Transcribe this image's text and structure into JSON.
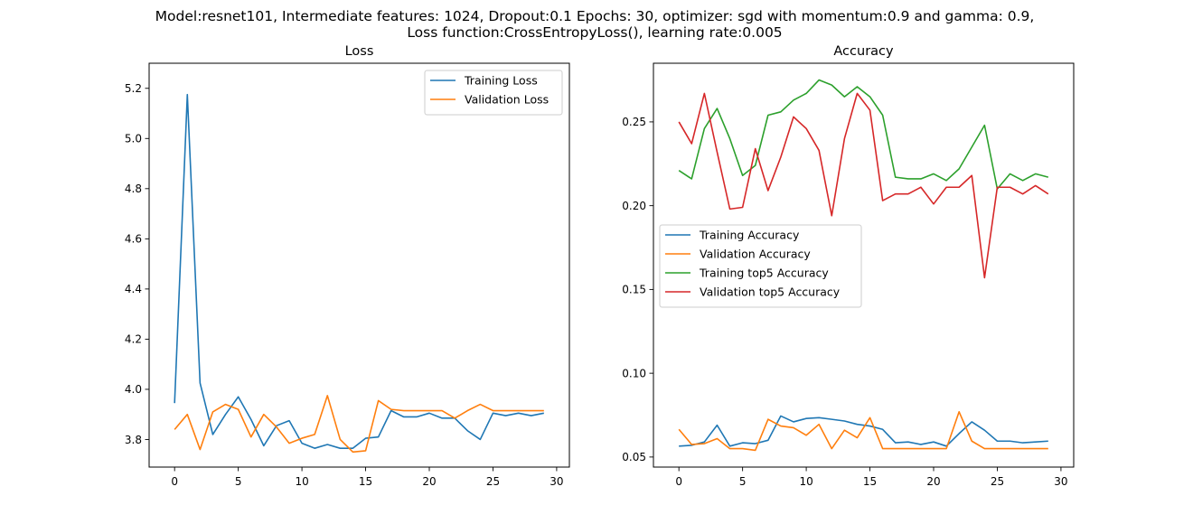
{
  "figure": {
    "suptitle_line1": "Model:resnet101, Intermediate features: 1024, Dropout:0.1 Epochs: 30, optimizer: sgd with momentum:0.9 and gamma: 0.9,",
    "suptitle_line2": "Loss function:CrossEntropyLoss(), learning rate:0.005"
  },
  "chart_data": [
    {
      "type": "line",
      "title": "Loss",
      "xlabel": "",
      "ylabel": "",
      "xlim": [
        -2,
        31
      ],
      "ylim": [
        3.69,
        5.3
      ],
      "xticks": [
        0,
        5,
        10,
        15,
        20,
        25,
        30
      ],
      "yticks": [
        3.8,
        4.0,
        4.2,
        4.4,
        4.6,
        4.8,
        5.0,
        5.2
      ],
      "tick_decimals": 1,
      "grid": false,
      "legend_position": "top-right",
      "x": [
        0,
        1,
        2,
        3,
        4,
        5,
        6,
        7,
        8,
        9,
        10,
        11,
        12,
        13,
        14,
        15,
        16,
        17,
        18,
        19,
        20,
        21,
        22,
        23,
        24,
        25,
        26,
        27,
        28,
        29
      ],
      "series": [
        {
          "name": "Training Loss",
          "color": "#1f77b4",
          "values": [
            3.945,
            5.175,
            4.025,
            3.82,
            3.9,
            3.97,
            3.88,
            3.775,
            3.855,
            3.875,
            3.785,
            3.765,
            3.78,
            3.765,
            3.765,
            3.805,
            3.81,
            3.915,
            3.89,
            3.89,
            3.905,
            3.885,
            3.885,
            3.835,
            3.8,
            3.905,
            3.895,
            3.905,
            3.895,
            3.905
          ]
        },
        {
          "name": "Validation Loss",
          "color": "#ff7f0e",
          "values": [
            3.84,
            3.9,
            3.76,
            3.91,
            3.94,
            3.92,
            3.81,
            3.9,
            3.85,
            3.785,
            3.805,
            3.82,
            3.975,
            3.8,
            3.75,
            3.755,
            3.955,
            3.92,
            3.915,
            3.915,
            3.915,
            3.915,
            3.885,
            3.915,
            3.94,
            3.915,
            3.915,
            3.915,
            3.915,
            3.915
          ]
        }
      ]
    },
    {
      "type": "line",
      "title": "Accuracy",
      "xlabel": "",
      "ylabel": "",
      "xlim": [
        -2,
        31
      ],
      "ylim": [
        0.044,
        0.285
      ],
      "xticks": [
        0,
        5,
        10,
        15,
        20,
        25,
        30
      ],
      "yticks": [
        0.05,
        0.1,
        0.15,
        0.2,
        0.25
      ],
      "tick_decimals": 2,
      "grid": false,
      "legend_position": "center-left",
      "x": [
        0,
        1,
        2,
        3,
        4,
        5,
        6,
        7,
        8,
        9,
        10,
        11,
        12,
        13,
        14,
        15,
        16,
        17,
        18,
        19,
        20,
        21,
        22,
        23,
        24,
        25,
        26,
        27,
        28,
        29
      ],
      "series": [
        {
          "name": "Training Accuracy",
          "color": "#1f77b4",
          "values": [
            0.0565,
            0.057,
            0.059,
            0.069,
            0.0565,
            0.0585,
            0.058,
            0.06,
            0.0745,
            0.071,
            0.073,
            0.0735,
            0.0725,
            0.0715,
            0.0695,
            0.0685,
            0.0665,
            0.0585,
            0.059,
            0.0575,
            0.059,
            0.0565,
            0.064,
            0.071,
            0.066,
            0.0595,
            0.0595,
            0.0585,
            0.059,
            0.0595
          ]
        },
        {
          "name": "Validation Accuracy",
          "color": "#ff7f0e",
          "values": [
            0.0665,
            0.0575,
            0.058,
            0.061,
            0.055,
            0.055,
            0.054,
            0.0725,
            0.0685,
            0.0675,
            0.063,
            0.0695,
            0.055,
            0.066,
            0.0615,
            0.0735,
            0.055,
            0.055,
            0.055,
            0.055,
            0.055,
            0.055,
            0.077,
            0.0595,
            0.055,
            0.055,
            0.055,
            0.055,
            0.055,
            0.055
          ]
        },
        {
          "name": "Training top5 Accuracy",
          "color": "#2ca02c",
          "values": [
            0.221,
            0.216,
            0.246,
            0.258,
            0.24,
            0.218,
            0.224,
            0.254,
            0.256,
            0.263,
            0.267,
            0.275,
            0.272,
            0.265,
            0.271,
            0.265,
            0.254,
            0.217,
            0.216,
            0.216,
            0.219,
            0.215,
            0.222,
            0.235,
            0.248,
            0.21,
            0.219,
            0.215,
            0.219,
            0.217
          ]
        },
        {
          "name": "Validation top5 Accuracy",
          "color": "#d62728",
          "values": [
            0.25,
            0.237,
            0.267,
            0.232,
            0.198,
            0.199,
            0.234,
            0.209,
            0.229,
            0.253,
            0.246,
            0.233,
            0.194,
            0.24,
            0.267,
            0.257,
            0.203,
            0.207,
            0.207,
            0.211,
            0.201,
            0.211,
            0.211,
            0.218,
            0.157,
            0.211,
            0.211,
            0.207,
            0.212,
            0.207
          ]
        }
      ]
    }
  ]
}
